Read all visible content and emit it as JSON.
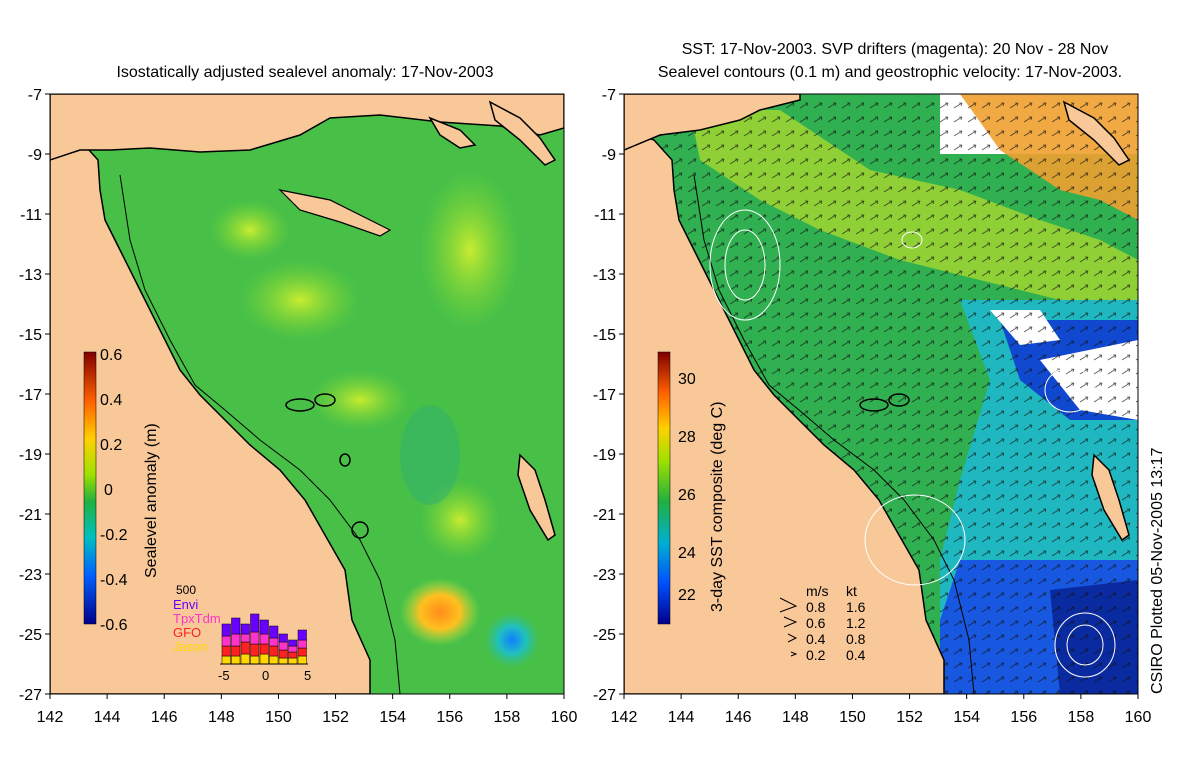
{
  "left_panel": {
    "title": "Isostatically adjusted sealevel anomaly: 17-Nov-2003",
    "colorbar": {
      "label": "Sealevel anomaly (m)",
      "ticks": [
        "0.6",
        "0.4",
        "0.2",
        "0",
        "-0.2",
        "-0.4",
        "-0.6"
      ],
      "min": -0.6,
      "max": 0.6
    },
    "inset": {
      "max_label": "500",
      "legend": [
        {
          "name": "Envi",
          "color": "#6a00ff"
        },
        {
          "name": "TpxTdm",
          "color": "#ff33cc"
        },
        {
          "name": "GFO",
          "color": "#ff2020"
        },
        {
          "name": "Jason",
          "color": "#ffd700"
        }
      ],
      "xticks": [
        "-5",
        "0",
        "5"
      ]
    },
    "colors": {
      "ocean": "#3fbf3f",
      "land": "#f8c899",
      "coast": "#000000"
    }
  },
  "right_panel": {
    "title_line1": "SST: 17-Nov-2003. SVP drifters (magenta): 20 Nov - 28 Nov",
    "title_line2": "Sealevel contours (0.1 m) and geostrophic velocity: 17-Nov-2003.",
    "colorbar": {
      "label": "3-day SST composite (deg C)",
      "ticks": [
        "30",
        "28",
        "26",
        "24",
        "22"
      ],
      "min": 21,
      "max": 31
    },
    "velocity_legend": {
      "header_ms": "m/s",
      "header_kt": "kt",
      "rows": [
        {
          "ms": "0.8",
          "kt": "1.6"
        },
        {
          "ms": "0.6",
          "kt": "1.2"
        },
        {
          "ms": "0.4",
          "kt": "0.8"
        },
        {
          "ms": "0.2",
          "kt": "0.4"
        }
      ]
    },
    "credit": "CSIRO Plotted 05-Nov-2005 13:17"
  },
  "axes": {
    "lat_ticks": [
      "-7",
      "-9",
      "-11",
      "-13",
      "-15",
      "-17",
      "-19",
      "-21",
      "-23",
      "-25",
      "-27"
    ],
    "lon_ticks": [
      "142",
      "144",
      "146",
      "148",
      "150",
      "152",
      "154",
      "156",
      "158",
      "160"
    ]
  }
}
